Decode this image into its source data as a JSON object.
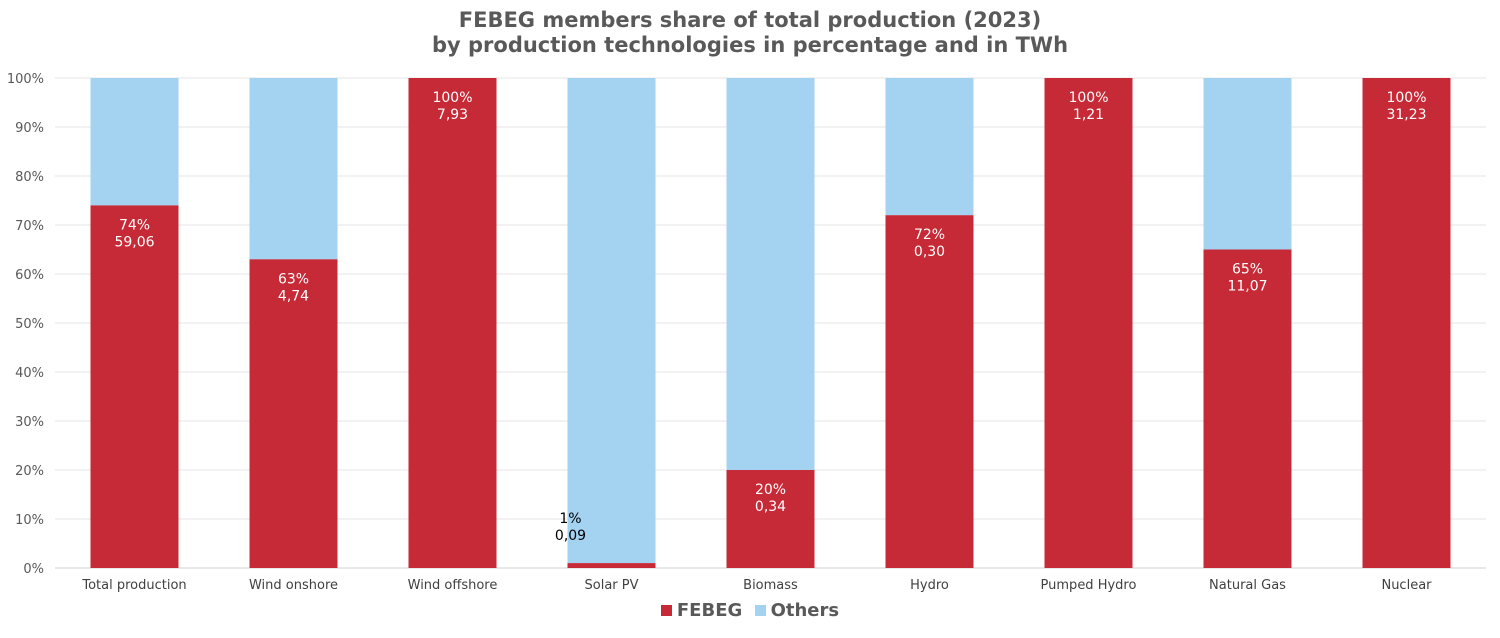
{
  "chart_data": {
    "type": "bar",
    "stacked": true,
    "title": [
      "FEBEG members share of total production (2023)",
      "by production technologies in percentage and in TWh"
    ],
    "categories": [
      "Total production",
      "Wind onshore",
      "Wind offshore",
      "Solar PV",
      "Biomass",
      "Hydro",
      "Pumped Hydro",
      "Natural Gas",
      "Nuclear"
    ],
    "y_ticks": [
      "0%",
      "10%",
      "20%",
      "30%",
      "40%",
      "50%",
      "60%",
      "70%",
      "80%",
      "90%",
      "100%"
    ],
    "ylim": [
      0,
      100
    ],
    "grid": true,
    "legend_position": "bottom",
    "series": [
      {
        "name": "FEBEG",
        "color": "#c62a37",
        "values": [
          74,
          63,
          100,
          1,
          20,
          72,
          100,
          65,
          100
        ],
        "pct_labels": [
          "74%",
          "63%",
          "100%",
          "1%",
          "20%",
          "72%",
          "100%",
          "65%",
          "100%"
        ],
        "twh_labels": [
          "59,06",
          "4,74",
          "7,93",
          "0,09",
          "0,34",
          "0,30",
          "1,21",
          "11,07",
          "31,23"
        ]
      },
      {
        "name": "Others",
        "color": "#a4d2f1",
        "values": [
          26,
          37,
          0,
          99,
          80,
          28,
          0,
          35,
          0
        ]
      }
    ]
  }
}
